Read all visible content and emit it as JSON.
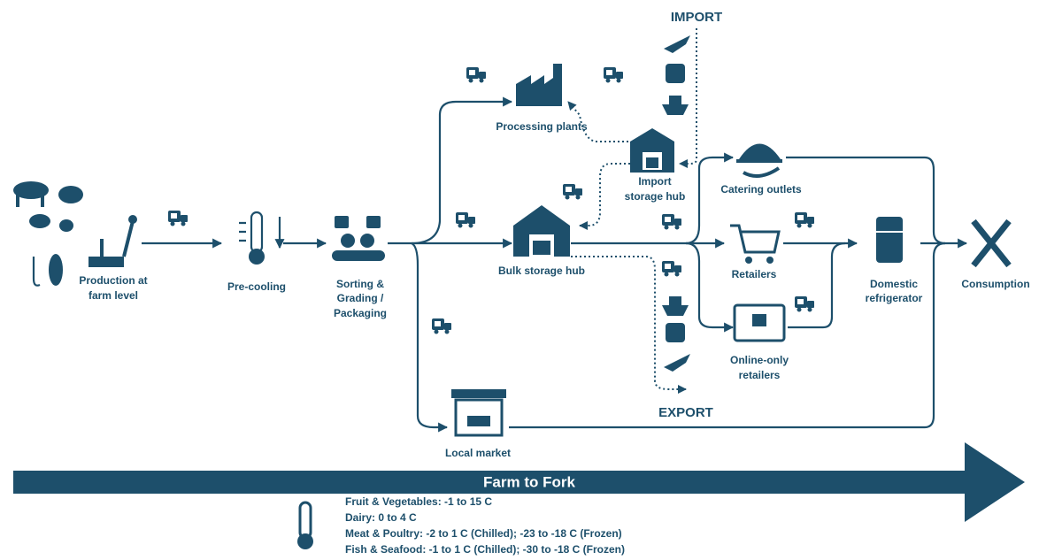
{
  "nodes": [
    {
      "label": [
        "Production at",
        "farm level"
      ]
    },
    {
      "label": [
        "Pre-cooling"
      ]
    },
    {
      "label": [
        "Sorting &",
        "Grading /",
        "Packaging"
      ]
    },
    {
      "label": [
        "Processing plants"
      ]
    },
    {
      "label": [
        "Import",
        "storage hub"
      ]
    },
    {
      "label": [
        "Bulk storage hub"
      ]
    },
    {
      "label": [
        "Catering outlets"
      ]
    },
    {
      "label": [
        "Retailers"
      ]
    },
    {
      "label": [
        "Online-only",
        "retailers"
      ]
    },
    {
      "label": [
        "Domestic",
        "refrigerator"
      ]
    },
    {
      "label": [
        "Consumption"
      ]
    },
    {
      "label": [
        "Local market"
      ]
    }
  ],
  "import_label": "IMPORT",
  "export_label": "EXPORT",
  "banner": "Farm to Fork",
  "temperatures": [
    "Fruit & Vegetables: -1 to 15 C",
    "Dairy: 0 to 4 C",
    "Meat & Poultry: -2 to 1 C (Chilled); -23 to -18 C (Frozen)",
    "Fish & Seafood: -1 to 1 C (Chilled); -30 to -18 C (Frozen)"
  ]
}
